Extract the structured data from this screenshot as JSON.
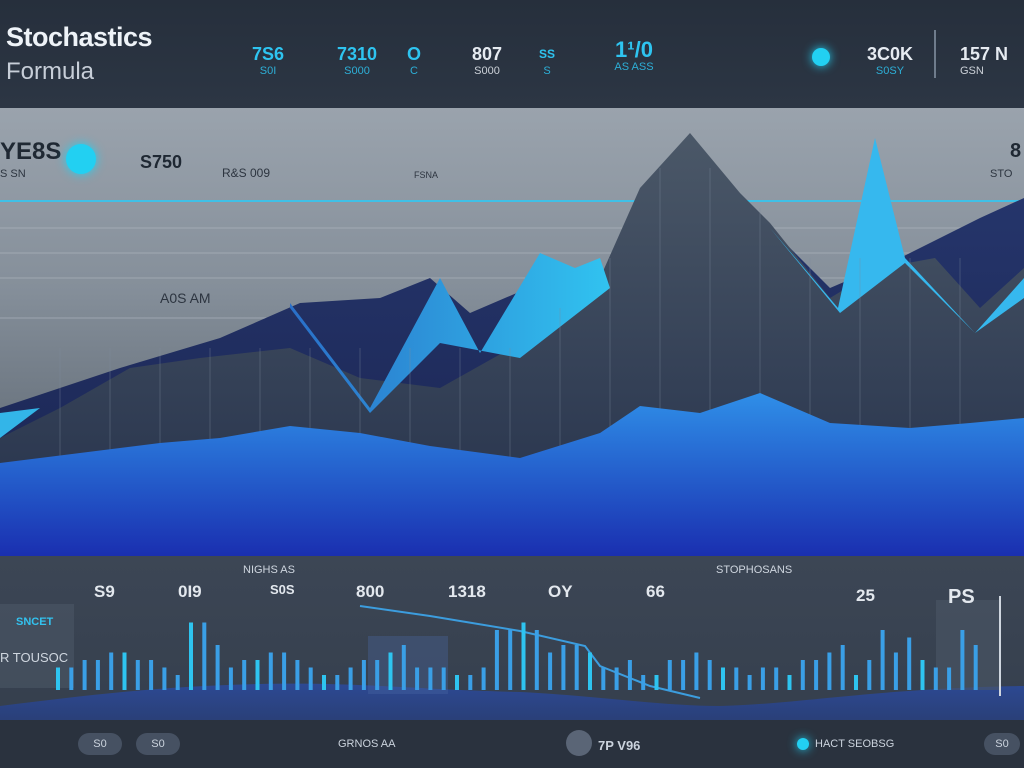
{
  "header": {
    "title": "Stochastics",
    "subtitle": "Formula",
    "stats": [
      {
        "value": "7S6",
        "label": "S0I"
      },
      {
        "value": "7310",
        "label": "S000"
      },
      {
        "value": "O",
        "label": "C"
      },
      {
        "value": "807",
        "label": "S000"
      },
      {
        "value": "SS",
        "label": "S"
      },
      {
        "value": "1¹/0",
        "label": "AS ASS"
      },
      {
        "value": "3C0K",
        "label": "S0SY"
      },
      {
        "value": "157 N",
        "label": "GSN"
      }
    ]
  },
  "main_chart": {
    "label_top_left": "YE8S",
    "label_top_left_sub": "S SN",
    "value_1": "S750",
    "label_center": "R&S 009",
    "label_small": "FSNA",
    "label_mid": "A0S AM",
    "label_right": "8",
    "label_right_sub": "STO"
  },
  "bottom_panel": {
    "label_top": "NIGHS AS",
    "label_right": "STOPHOSANS",
    "numbers": [
      "S9",
      "0I9",
      "S0S",
      "800",
      "1318",
      "OY",
      "66",
      "25",
      "PS"
    ],
    "side_labels": [
      "SNCET",
      "R TOUSOC"
    ],
    "bar_values": [
      3,
      3,
      4,
      4,
      5,
      5,
      4,
      4,
      3,
      2,
      9,
      9,
      6,
      3,
      4,
      4,
      5,
      5,
      4,
      3,
      2,
      2,
      3,
      4,
      4,
      5,
      6,
      3,
      3,
      3,
      2,
      2,
      3,
      8,
      8,
      9,
      8,
      5,
      6,
      6,
      5,
      3,
      3,
      4,
      2,
      2,
      4,
      4,
      5,
      4,
      3,
      3,
      2,
      3,
      3,
      2,
      4,
      4,
      5,
      6,
      2,
      4,
      8,
      5,
      7,
      4,
      3,
      3,
      8,
      6
    ]
  },
  "footer": {
    "btn_left": "S0",
    "btn_left2": "S0",
    "center_text": "GRNOS AA",
    "btn_mid": "7P V96",
    "legend_text": "HACT SEOBSG",
    "btn_right": "S0"
  }
}
